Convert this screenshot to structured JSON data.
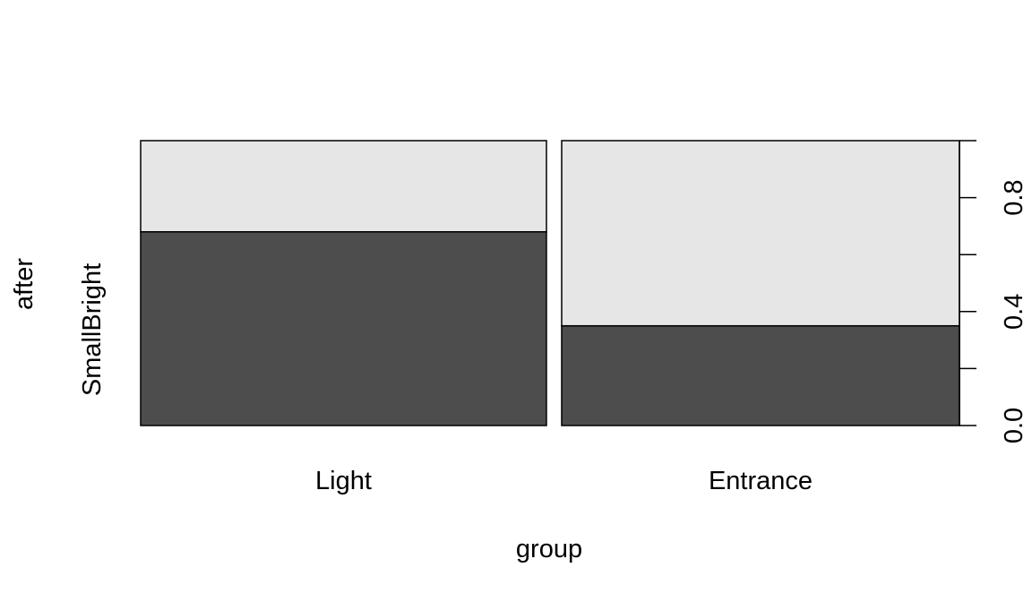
{
  "chart_data": {
    "type": "spineplot",
    "xlabel": "group",
    "ylabel": "after",
    "y_category_label": "SmallBright",
    "categories": [
      "Light",
      "Entrance"
    ],
    "category_widths": [
      0.505,
      0.495
    ],
    "series": [
      {
        "values": [
          0.68,
          0.35
        ],
        "color": "#4d4d4d"
      },
      {
        "values": [
          0.32,
          0.65
        ],
        "color": "#e6e6e6"
      }
    ],
    "ylim": [
      0,
      1
    ],
    "y_ticks": [
      0.0,
      0.2,
      0.4,
      0.6,
      0.8,
      1.0
    ],
    "y_tick_labels": [
      "0.0",
      "",
      "0.4",
      "",
      "0.8",
      ""
    ],
    "y_axis_side": "right",
    "grid": false
  }
}
